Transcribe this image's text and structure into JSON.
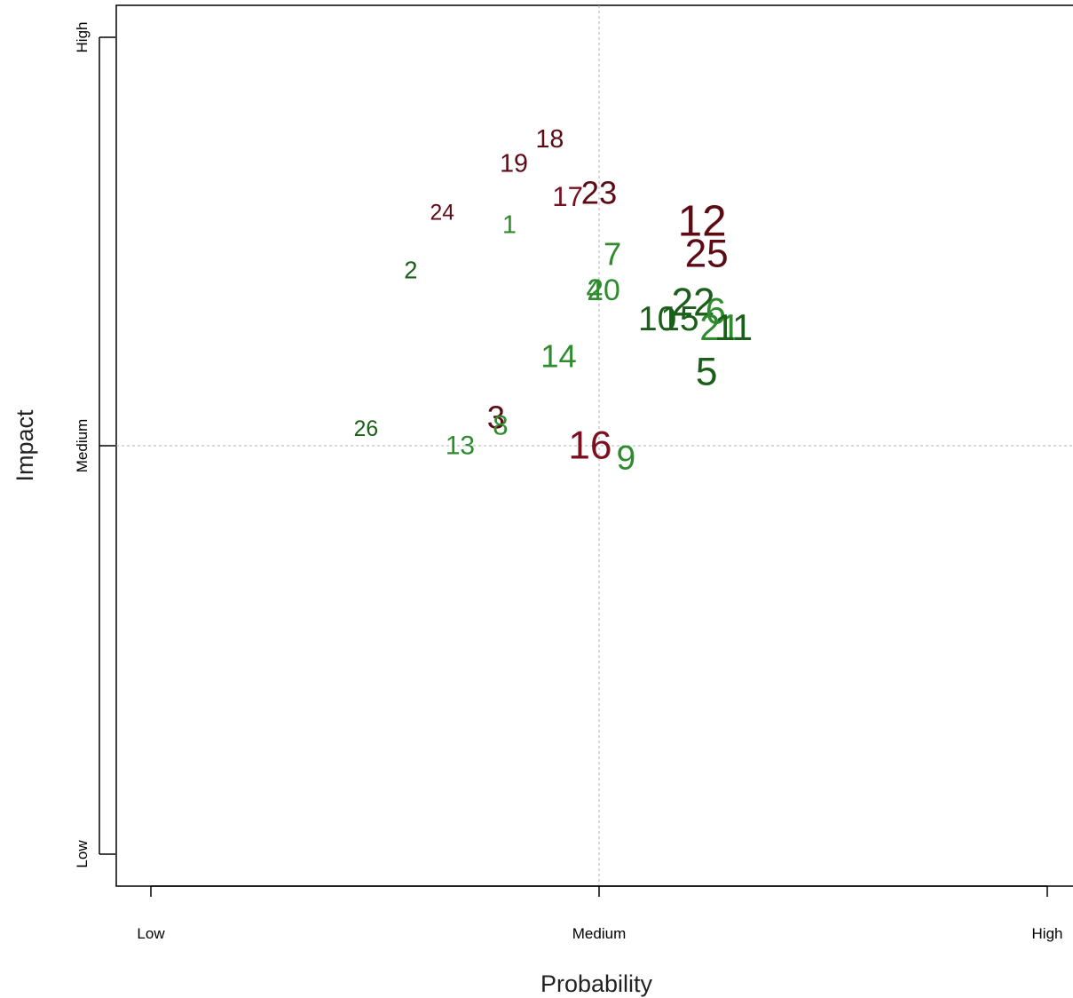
{
  "chart_data": {
    "type": "scatter",
    "xlabel": "Probability",
    "ylabel": "Impact",
    "xlim": [
      0.2,
      3.08
    ],
    "ylim": [
      0.93,
      3.08
    ],
    "grid": false,
    "reference_lines": {
      "x": 2,
      "y": 2
    },
    "x_ticks": [
      {
        "value": 1,
        "label": "Low"
      },
      {
        "value": 2,
        "label": "Medium"
      },
      {
        "value": 3,
        "label": "High"
      }
    ],
    "y_ticks": [
      {
        "value": 1,
        "label": "Low"
      },
      {
        "value": 2,
        "label": "Medium"
      },
      {
        "value": 3,
        "label": "High"
      }
    ],
    "colors": {
      "dark_red": "#5c0a14",
      "red": "#7a1020",
      "dark_green": "#1a5e1a",
      "green": "#2e8b2e"
    },
    "points": [
      {
        "label": "1",
        "x": 1.8,
        "y": 2.54,
        "size": 1.1,
        "color": "#2e8b2e"
      },
      {
        "label": "2",
        "x": 1.58,
        "y": 2.43,
        "size": 1.05,
        "color": "#1a5e1a"
      },
      {
        "label": "3",
        "x": 1.77,
        "y": 2.07,
        "size": 1.4,
        "color": "#5c0a14"
      },
      {
        "label": "8",
        "x": 1.78,
        "y": 2.05,
        "size": 1.2,
        "color": "#2e8b2e"
      },
      {
        "label": "26",
        "x": 1.48,
        "y": 2.04,
        "size": 0.95,
        "color": "#1a5e1a"
      },
      {
        "label": "13",
        "x": 1.69,
        "y": 2.0,
        "size": 1.15,
        "color": "#2e8b2e"
      },
      {
        "label": "18",
        "x": 1.89,
        "y": 2.75,
        "size": 1.1,
        "color": "#5c0a14"
      },
      {
        "label": "19",
        "x": 1.81,
        "y": 2.69,
        "size": 1.1,
        "color": "#5c0a14"
      },
      {
        "label": "24",
        "x": 1.65,
        "y": 2.57,
        "size": 0.95,
        "color": "#5c0a14"
      },
      {
        "label": "17",
        "x": 1.93,
        "y": 2.61,
        "size": 1.2,
        "color": "#7a1020"
      },
      {
        "label": "23",
        "x": 2.0,
        "y": 2.62,
        "size": 1.4,
        "color": "#5c0a14"
      },
      {
        "label": "12",
        "x": 2.23,
        "y": 2.55,
        "size": 1.9,
        "color": "#5c0a14"
      },
      {
        "label": "25",
        "x": 2.24,
        "y": 2.47,
        "size": 1.7,
        "color": "#5c0a14"
      },
      {
        "label": "7",
        "x": 2.03,
        "y": 2.47,
        "size": 1.4,
        "color": "#2e8b2e"
      },
      {
        "label": "4",
        "x": 1.99,
        "y": 2.38,
        "size": 1.3,
        "color": "#2e8b2e"
      },
      {
        "label": "20",
        "x": 2.01,
        "y": 2.38,
        "size": 1.3,
        "color": "#2e8b2e"
      },
      {
        "label": "14",
        "x": 1.91,
        "y": 2.22,
        "size": 1.4,
        "color": "#2e8b2e"
      },
      {
        "label": "10",
        "x": 2.13,
        "y": 2.31,
        "size": 1.5,
        "color": "#1a5e1a"
      },
      {
        "label": "15",
        "x": 2.18,
        "y": 2.31,
        "size": 1.5,
        "color": "#1a5e1a"
      },
      {
        "label": "22",
        "x": 2.21,
        "y": 2.35,
        "size": 1.7,
        "color": "#1a5e1a"
      },
      {
        "label": "6",
        "x": 2.26,
        "y": 2.33,
        "size": 1.6,
        "color": "#2e8b2e"
      },
      {
        "label": "21",
        "x": 2.27,
        "y": 2.29,
        "size": 1.6,
        "color": "#2e8b2e"
      },
      {
        "label": "11",
        "x": 2.3,
        "y": 2.29,
        "size": 1.6,
        "color": "#1a5e1a"
      },
      {
        "label": "5",
        "x": 2.24,
        "y": 2.18,
        "size": 1.7,
        "color": "#1a5e1a"
      },
      {
        "label": "16",
        "x": 1.98,
        "y": 2.0,
        "size": 1.7,
        "color": "#7a1020"
      },
      {
        "label": "9",
        "x": 2.06,
        "y": 1.97,
        "size": 1.5,
        "color": "#2e8b2e"
      }
    ]
  }
}
